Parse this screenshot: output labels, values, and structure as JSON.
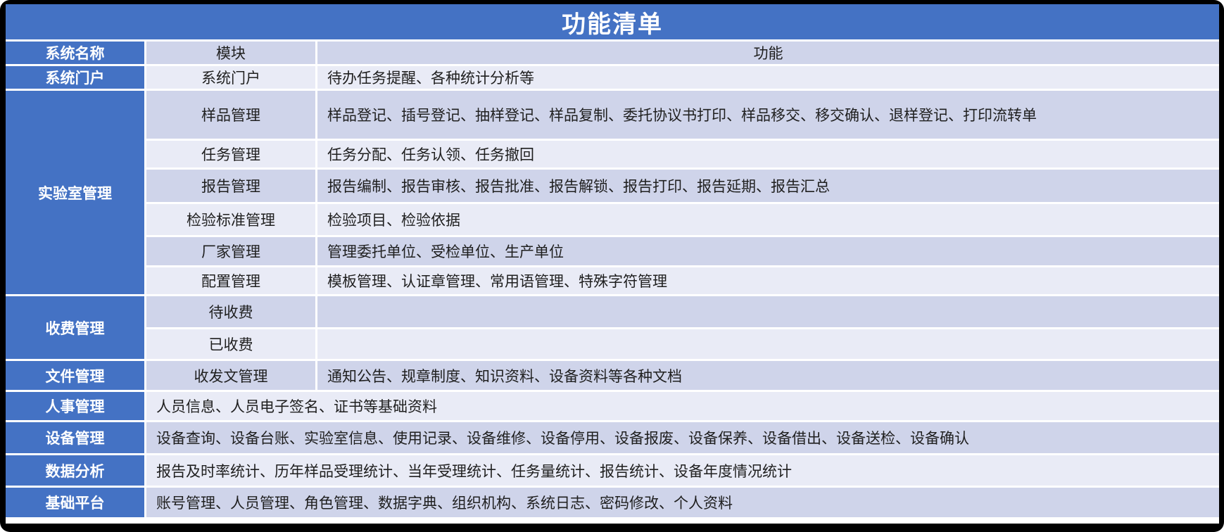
{
  "title": "功能清单",
  "colors": {
    "accent_blue": "#4472C4",
    "band_dark": "#CFD4EA",
    "band_light": "#E9EBF6",
    "frame": "#000000",
    "grid_lines": "#FFFFFF",
    "header_text": "#FFFFFF",
    "body_text": "#1F1F1F"
  },
  "header": {
    "system": "系统名称",
    "module": "模块",
    "function": "功能"
  },
  "groups": [
    {
      "system": "系统门户",
      "rows": [
        {
          "module": "系统门户",
          "functions": "待办任务提醒、各种统计分析等"
        }
      ]
    },
    {
      "system": "实验室管理",
      "rows": [
        {
          "module": "样品管理",
          "functions": "样品登记、插号登记、抽样登记、样品复制、委托协议书打印、样品移交、移交确认、退样登记、打印流转单"
        },
        {
          "module": "任务管理",
          "functions": "任务分配、任务认领、任务撤回"
        },
        {
          "module": "报告管理",
          "functions": "报告编制、报告审核、报告批准、报告解锁、报告打印、报告延期、报告汇总"
        },
        {
          "module": "检验标准管理",
          "functions": "检验项目、检验依据"
        },
        {
          "module": "厂家管理",
          "functions": "管理委托单位、受检单位、生产单位"
        },
        {
          "module": "配置管理",
          "functions": "模板管理、认证章管理、常用语管理、特殊字符管理"
        }
      ]
    },
    {
      "system": "收费管理",
      "rows": [
        {
          "module": "待收费",
          "functions": ""
        },
        {
          "module": "已收费",
          "functions": ""
        }
      ]
    },
    {
      "system": "文件管理",
      "rows": [
        {
          "module": "收发文管理",
          "functions": "通知公告、规章制度、知识资料、设备资料等各种文档"
        }
      ]
    },
    {
      "system": "人事管理",
      "functions": "人员信息、人员电子签名、证书等基础资料"
    },
    {
      "system": "设备管理",
      "functions": "设备查询、设备台账、实验室信息、使用记录、设备维修、设备停用、设备报废、设备保养、设备借出、设备送检、设备确认"
    },
    {
      "system": "数据分析",
      "functions": "报告及时率统计、历年样品受理统计、当年受理统计、任务量统计、报告统计、设备年度情况统计"
    },
    {
      "system": "基础平台",
      "functions": "账号管理、人员管理、角色管理、数据字典、组织机构、系统日志、密码修改、个人资料"
    }
  ]
}
